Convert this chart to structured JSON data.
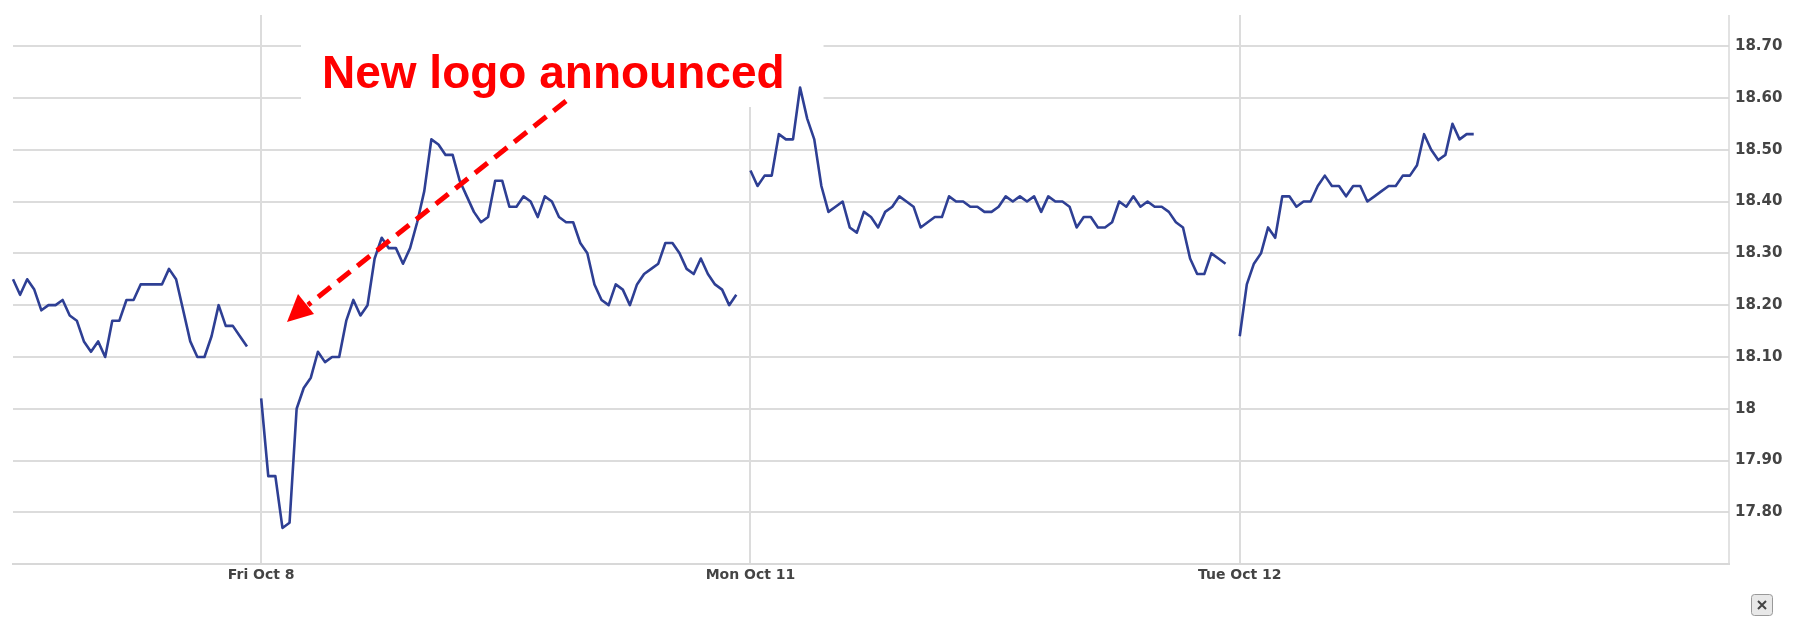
{
  "chart_data": {
    "type": "line",
    "ylim": [
      17.7,
      18.76
    ],
    "categories": [
      null,
      null,
      null,
      null,
      null,
      null,
      null,
      null,
      null,
      null,
      null,
      null,
      null,
      null,
      null,
      null,
      null,
      null,
      null,
      null,
      null,
      null,
      null,
      null,
      null,
      null,
      null,
      null,
      null,
      null,
      null,
      null,
      null,
      null,
      null,
      "Fri Oct 8",
      null,
      null,
      null,
      null,
      null,
      null,
      null,
      null,
      null,
      null,
      null,
      null,
      null,
      null,
      null,
      null,
      null,
      null,
      null,
      null,
      null,
      null,
      null,
      null,
      null,
      null,
      null,
      null,
      null,
      null,
      null,
      null,
      null,
      null,
      null,
      null,
      null,
      null,
      null,
      null,
      null,
      null,
      null,
      null,
      null,
      null,
      null,
      null,
      null,
      null,
      null,
      null,
      null,
      null,
      null,
      null,
      null,
      null,
      null,
      null,
      null,
      null,
      null,
      null,
      null,
      null,
      null,
      null,
      "Mon Oct 11",
      null,
      null,
      null,
      null,
      null,
      null,
      null,
      null,
      null,
      null,
      null,
      null,
      null,
      null,
      null,
      null,
      null,
      null,
      null,
      null,
      null,
      null,
      null,
      null,
      null,
      null,
      null,
      null,
      null,
      null,
      null,
      null,
      null,
      null,
      null,
      null,
      null,
      null,
      null,
      null,
      null,
      null,
      null,
      null,
      null,
      null,
      null,
      null,
      null,
      null,
      null,
      null,
      null,
      null,
      null,
      null,
      null,
      null,
      null,
      null,
      null,
      null,
      null,
      null,
      null,
      null,
      null,
      null,
      "Tue Oct 12",
      null,
      null,
      null,
      null,
      null,
      null,
      null,
      null,
      null,
      null,
      null,
      null,
      null,
      null,
      null,
      null,
      null,
      null,
      null,
      null,
      null,
      null,
      null,
      null,
      null,
      null,
      null,
      null,
      null,
      null,
      null,
      null,
      null,
      null,
      null,
      null,
      null,
      null,
      null,
      null,
      null,
      null,
      null,
      null,
      null,
      null,
      null,
      null,
      null,
      null,
      null,
      null,
      null,
      null,
      null,
      null,
      null,
      null,
      null,
      null,
      null,
      null,
      null,
      null,
      null,
      null,
      null,
      null,
      null
    ],
    "yticks": [
      {
        "value": 17.8,
        "label": "17.80"
      },
      {
        "value": 17.9,
        "label": "17.90"
      },
      18,
      {
        "value": 18.1,
        "label": "18.10"
      },
      {
        "value": 18.2,
        "label": "18.20"
      },
      {
        "value": 18.3,
        "label": "18.30"
      },
      {
        "value": 18.4,
        "label": "18.40"
      },
      {
        "value": 18.5,
        "label": "18.50"
      },
      {
        "value": 18.6,
        "label": "18.60"
      },
      {
        "value": 18.7,
        "label": "18.70"
      }
    ],
    "grid": true,
    "legend": false,
    "marker": "none",
    "line_style": "solid",
    "annotations": [
      "New logo announced"
    ],
    "series": [
      {
        "color": "#2e3f94",
        "values": [
          18.25,
          18.22,
          18.25,
          18.23,
          18.19,
          18.2,
          18.2,
          18.21,
          18.18,
          18.17,
          18.13,
          18.11,
          18.13,
          18.1,
          18.17,
          18.17,
          18.21,
          18.21,
          18.24,
          18.24,
          18.24,
          18.24,
          18.27,
          18.25,
          18.19,
          18.13,
          18.1,
          18.1,
          18.14,
          18.2,
          18.16,
          18.16,
          18.14,
          18.12,
          null,
          18.02,
          17.87,
          17.87,
          17.77,
          17.78,
          18.0,
          18.04,
          18.06,
          18.11,
          18.09,
          18.1,
          18.1,
          18.17,
          18.21,
          18.18,
          18.2,
          18.29,
          18.33,
          18.31,
          18.31,
          18.28,
          18.31,
          18.36,
          18.42,
          18.52,
          18.51,
          18.49,
          18.49,
          18.44,
          18.41,
          18.38,
          18.36,
          18.37,
          18.44,
          18.44,
          18.39,
          18.39,
          18.41,
          18.4,
          18.37,
          18.41,
          18.4,
          18.37,
          18.36,
          18.36,
          18.32,
          18.3,
          18.24,
          18.21,
          18.2,
          18.24,
          18.23,
          18.2,
          18.24,
          18.26,
          18.27,
          18.28,
          18.32,
          18.32,
          18.3,
          18.27,
          18.26,
          18.29,
          18.26,
          18.24,
          18.23,
          18.2,
          18.22,
          null,
          18.46,
          18.43,
          18.45,
          18.45,
          18.53,
          18.52,
          18.52,
          18.62,
          18.56,
          18.52,
          18.43,
          18.38,
          18.39,
          18.4,
          18.35,
          18.34,
          18.38,
          18.37,
          18.35,
          18.38,
          18.39,
          18.41,
          18.4,
          18.39,
          18.35,
          18.36,
          18.37,
          18.37,
          18.41,
          18.4,
          18.4,
          18.39,
          18.39,
          18.38,
          18.38,
          18.39,
          18.41,
          18.4,
          18.41,
          18.4,
          18.41,
          18.38,
          18.41,
          18.4,
          18.4,
          18.39,
          18.35,
          18.37,
          18.37,
          18.35,
          18.35,
          18.36,
          18.4,
          18.39,
          18.41,
          18.39,
          18.4,
          18.39,
          18.39,
          18.38,
          18.36,
          18.35,
          18.29,
          18.26,
          18.26,
          18.3,
          18.29,
          18.28,
          null,
          18.14,
          18.24,
          18.28,
          18.3,
          18.35,
          18.33,
          18.41,
          18.41,
          18.39,
          18.4,
          18.4,
          18.43,
          18.45,
          18.43,
          18.43,
          18.41,
          18.43,
          18.43,
          18.4,
          18.41,
          18.42,
          18.43,
          18.43,
          18.45,
          18.45,
          18.47,
          18.53,
          18.5,
          18.48,
          18.49,
          18.55,
          18.52,
          18.53,
          18.53,
          null,
          null,
          null,
          null,
          null,
          null,
          null,
          null,
          null,
          null,
          null,
          null,
          null,
          null,
          null,
          null,
          null,
          null,
          null,
          null,
          null,
          null,
          null,
          null,
          null,
          null,
          null,
          null,
          null,
          null,
          null,
          null,
          null,
          null,
          null,
          null
        ]
      }
    ]
  }
}
